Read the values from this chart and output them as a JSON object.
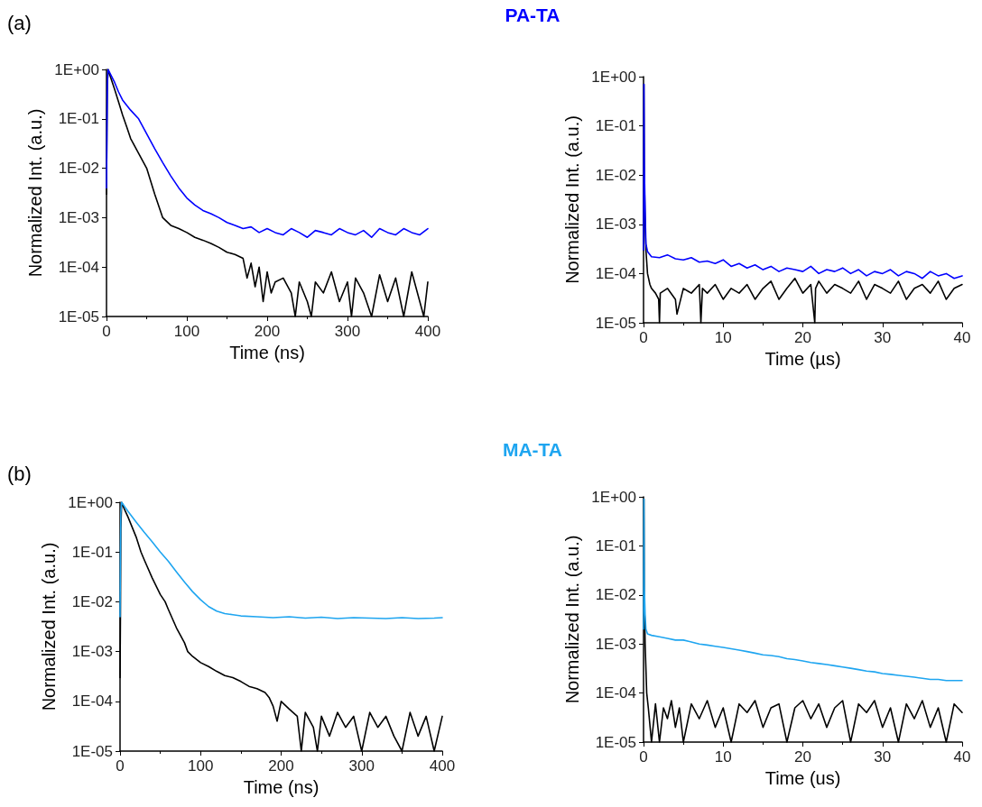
{
  "chart_data": [
    {
      "type": "line",
      "annotations": [
        "(a)",
        "PA-TA"
      ],
      "xlabel": "Time (ns)",
      "ylabel": "Normalized Int. (a.u.)",
      "log": "y",
      "marker": "none",
      "line_style": "solid",
      "grid": false,
      "xlim": [
        0,
        400
      ],
      "xticks": [
        0,
        100,
        200,
        300,
        400
      ],
      "ylim": [
        1e-05,
        1
      ],
      "yticks": [
        {
          "value": 1,
          "label": "1E+00"
        },
        {
          "value": 0.1,
          "label": "1E-01"
        },
        {
          "value": 0.01,
          "label": "1E-02"
        },
        {
          "value": 0.001,
          "label": "1E-03"
        },
        {
          "value": 0.0001,
          "label": "1E-04"
        },
        {
          "value": 1e-05,
          "label": "1E-05"
        }
      ],
      "series": [
        {
          "color": "#0000ff",
          "x": [
            0,
            0.5,
            1,
            2,
            5,
            10,
            15,
            20,
            30,
            40,
            50,
            60,
            70,
            80,
            90,
            100,
            110,
            120,
            130,
            140,
            150,
            160,
            170,
            180,
            190,
            200,
            210,
            220,
            230,
            240,
            250,
            260,
            270,
            280,
            290,
            300,
            310,
            320,
            330,
            340,
            350,
            360,
            370,
            380,
            390,
            400
          ],
          "values": [
            0.004,
            0.05,
            0.5,
            1,
            0.8,
            0.55,
            0.35,
            0.24,
            0.15,
            0.1,
            0.05,
            0.025,
            0.013,
            0.007,
            0.004,
            0.0025,
            0.0018,
            0.0014,
            0.0012,
            0.001,
            0.0008,
            0.0007,
            0.0006,
            0.00065,
            0.0005,
            0.0006,
            0.0005,
            0.00045,
            0.0006,
            0.0005,
            0.0004,
            0.00055,
            0.0005,
            0.00045,
            0.0006,
            0.0005,
            0.00045,
            0.00055,
            0.0004,
            0.0006,
            0.0005,
            0.00045,
            0.0006,
            0.0005,
            0.00045,
            0.0006
          ]
        },
        {
          "color": "#000000",
          "x": [
            0,
            0.5,
            1,
            2,
            5,
            10,
            15,
            20,
            25,
            30,
            40,
            50,
            60,
            70,
            80,
            90,
            100,
            110,
            120,
            130,
            140,
            150,
            160,
            170,
            175,
            180,
            185,
            190,
            195,
            200,
            205,
            210,
            220,
            230,
            235,
            240,
            250,
            255,
            260,
            270,
            280,
            290,
            300,
            305,
            310,
            320,
            330,
            340,
            350,
            360,
            370,
            380,
            390,
            395,
            400
          ],
          "values": [
            0.003,
            0.05,
            0.5,
            1,
            0.7,
            0.4,
            0.22,
            0.12,
            0.07,
            0.04,
            0.02,
            0.01,
            0.003,
            0.001,
            0.0007,
            0.0006,
            0.0005,
            0.0004,
            0.00035,
            0.0003,
            0.00025,
            0.0002,
            0.00018,
            0.00015,
            6e-05,
            0.00012,
            4e-05,
            0.0001,
            2e-05,
            8e-05,
            3e-05,
            5e-05,
            6e-05,
            3e-05,
            1e-05,
            5e-05,
            2e-05,
            1e-05,
            5e-05,
            3e-05,
            8e-05,
            2e-05,
            5e-05,
            1e-05,
            6e-05,
            3e-05,
            1e-05,
            7e-05,
            2e-05,
            6e-05,
            1e-05,
            8e-05,
            2e-05,
            1e-05,
            5e-05
          ]
        }
      ]
    },
    {
      "type": "line",
      "xlabel": "Time (µs)",
      "ylabel": "Normalized Int. (a.u.)",
      "log": "y",
      "marker": "none",
      "line_style": "solid",
      "grid": false,
      "xlim": [
        0,
        40
      ],
      "xticks": [
        0,
        10,
        20,
        30,
        40
      ],
      "ylim": [
        1e-05,
        1
      ],
      "yticks": [
        {
          "value": 1,
          "label": "1E+00"
        },
        {
          "value": 0.1,
          "label": "1E-01"
        },
        {
          "value": 0.01,
          "label": "1E-02"
        },
        {
          "value": 0.001,
          "label": "1E-03"
        },
        {
          "value": 0.0001,
          "label": "1E-04"
        },
        {
          "value": 1e-05,
          "label": "1E-05"
        }
      ],
      "series": [
        {
          "color": "#0000ff",
          "x": [
            0,
            0.05,
            0.1,
            0.2,
            0.3,
            0.5,
            1,
            2,
            3,
            4,
            5,
            6,
            7,
            8,
            9,
            10,
            11,
            12,
            13,
            14,
            15,
            16,
            17,
            18,
            19,
            20,
            21,
            22,
            23,
            24,
            25,
            26,
            27,
            28,
            29,
            30,
            31,
            32,
            33,
            34,
            35,
            36,
            37,
            38,
            39,
            40
          ],
          "values": [
            0.0003,
            0.7,
            0.015,
            0.002,
            0.0004,
            0.00028,
            0.00022,
            0.00021,
            0.00024,
            0.0002,
            0.00019,
            0.00021,
            0.00017,
            0.00018,
            0.00016,
            0.00019,
            0.00014,
            0.00016,
            0.00013,
            0.00015,
            0.00012,
            0.00014,
            0.00011,
            0.00013,
            0.00012,
            0.00011,
            0.00014,
            0.0001,
            0.00012,
            0.00011,
            0.00013,
            0.0001,
            0.00012,
            9e-05,
            0.00011,
            0.0001,
            0.00012,
            9e-05,
            0.00011,
            0.0001,
            8e-05,
            0.00011,
            9e-05,
            0.0001,
            8e-05,
            9e-05
          ]
        },
        {
          "color": "#000000",
          "x": [
            0,
            0.05,
            0.1,
            0.2,
            0.3,
            0.5,
            0.8,
            1,
            1.5,
            1.9,
            2,
            2.1,
            3,
            4,
            4.2,
            5,
            6,
            7,
            7.2,
            7.4,
            8,
            9,
            10,
            11,
            12,
            13,
            14,
            15,
            16,
            17,
            18,
            19,
            20,
            21,
            21.5,
            21.6,
            22,
            23,
            24,
            25,
            26,
            27,
            28,
            29,
            30,
            31,
            32,
            33,
            34,
            35,
            36,
            37,
            38,
            39,
            40
          ],
          "values": [
            0.0003,
            0.7,
            0.01,
            0.001,
            0.0003,
            0.0001,
            6e-05,
            5e-05,
            4e-05,
            3e-05,
            1e-05,
            4e-05,
            5e-05,
            3e-05,
            1.5e-05,
            5e-05,
            4e-05,
            6e-05,
            1e-05,
            5e-05,
            4e-05,
            6e-05,
            3e-05,
            5e-05,
            4e-05,
            6e-05,
            3e-05,
            5e-05,
            7e-05,
            3e-05,
            5e-05,
            8e-05,
            4e-05,
            6e-05,
            1e-05,
            5e-05,
            7e-05,
            4e-05,
            6e-05,
            5e-05,
            4e-05,
            7e-05,
            3e-05,
            6e-05,
            5e-05,
            4e-05,
            7e-05,
            3e-05,
            5e-05,
            6e-05,
            4e-05,
            7e-05,
            3e-05,
            5e-05,
            6e-05
          ]
        }
      ]
    },
    {
      "type": "line",
      "annotations": [
        "(b)",
        "MA-TA"
      ],
      "xlabel": "Time (ns)",
      "ylabel": "Normalized Int. (a.u.)",
      "log": "y",
      "marker": "none",
      "line_style": "solid",
      "grid": false,
      "xlim": [
        0,
        400
      ],
      "xticks": [
        0,
        100,
        200,
        300,
        400
      ],
      "ylim": [
        1e-05,
        1
      ],
      "yticks": [
        {
          "value": 1,
          "label": "1E+00"
        },
        {
          "value": 0.1,
          "label": "1E-01"
        },
        {
          "value": 0.01,
          "label": "1E-02"
        },
        {
          "value": 0.001,
          "label": "1E-03"
        },
        {
          "value": 0.0001,
          "label": "1E-04"
        },
        {
          "value": 1e-05,
          "label": "1E-05"
        }
      ],
      "series": [
        {
          "color": "#1ea5f0",
          "x": [
            0,
            0.5,
            1,
            2,
            5,
            10,
            20,
            30,
            40,
            50,
            60,
            70,
            80,
            90,
            100,
            110,
            120,
            130,
            140,
            150,
            170,
            190,
            210,
            230,
            250,
            270,
            290,
            310,
            330,
            350,
            370,
            390,
            400
          ],
          "values": [
            0.005,
            0.1,
            0.6,
            1,
            0.85,
            0.65,
            0.4,
            0.25,
            0.16,
            0.1,
            0.065,
            0.04,
            0.025,
            0.016,
            0.011,
            0.008,
            0.0065,
            0.0058,
            0.0055,
            0.0052,
            0.005,
            0.0048,
            0.005,
            0.0047,
            0.0049,
            0.0046,
            0.0048,
            0.0047,
            0.0046,
            0.0048,
            0.0046,
            0.0047,
            0.0048
          ]
        },
        {
          "color": "#000000",
          "x": [
            0,
            0.5,
            1,
            2,
            5,
            10,
            20,
            26,
            30,
            40,
            50,
            56,
            60,
            70,
            80,
            84,
            90,
            100,
            110,
            120,
            130,
            140,
            150,
            160,
            170,
            180,
            185,
            190,
            195,
            200,
            210,
            220,
            225,
            230,
            240,
            245,
            250,
            260,
            270,
            280,
            290,
            300,
            310,
            320,
            330,
            340,
            350,
            360,
            370,
            380,
            390,
            400
          ],
          "values": [
            0.0003,
            0.005,
            0.3,
            1,
            0.75,
            0.5,
            0.2,
            0.1,
            0.07,
            0.03,
            0.014,
            0.01,
            0.007,
            0.003,
            0.0015,
            0.001,
            0.0008,
            0.0006,
            0.0005,
            0.0004,
            0.00033,
            0.0003,
            0.00025,
            0.0002,
            0.00018,
            0.00015,
            0.00012,
            8e-05,
            4e-05,
            0.0001,
            7e-05,
            5e-05,
            1e-05,
            6e-05,
            3e-05,
            1e-05,
            5e-05,
            2e-05,
            6e-05,
            3e-05,
            5e-05,
            1e-05,
            6e-05,
            3e-05,
            5e-05,
            2e-05,
            1e-05,
            6e-05,
            2e-05,
            5e-05,
            1e-05,
            5e-05
          ]
        }
      ]
    },
    {
      "type": "line",
      "xlabel": "Time (us)",
      "ylabel": "Normalized Int. (a.u.)",
      "log": "y",
      "marker": "none",
      "line_style": "solid",
      "grid": false,
      "xlim": [
        0,
        40
      ],
      "xticks": [
        0,
        10,
        20,
        30,
        40
      ],
      "ylim": [
        1e-05,
        1
      ],
      "yticks": [
        {
          "value": 1,
          "label": "1E+00"
        },
        {
          "value": 0.1,
          "label": "1E-01"
        },
        {
          "value": 0.01,
          "label": "1E-02"
        },
        {
          "value": 0.001,
          "label": "1E-03"
        },
        {
          "value": 0.0001,
          "label": "1E-04"
        },
        {
          "value": 1e-05,
          "label": "1E-05"
        }
      ],
      "series": [
        {
          "color": "#1ea5f0",
          "x": [
            0,
            0.05,
            0.1,
            0.2,
            0.3,
            0.5,
            1,
            2,
            3,
            4,
            5,
            6,
            7,
            8,
            9,
            10,
            11,
            12,
            13,
            14,
            15,
            16,
            17,
            18,
            19,
            20,
            21,
            22,
            23,
            24,
            25,
            26,
            27,
            28,
            29,
            30,
            31,
            32,
            33,
            34,
            35,
            36,
            37,
            38,
            39,
            40
          ],
          "values": [
            0.002,
            0.9,
            0.015,
            0.004,
            0.002,
            0.0016,
            0.0015,
            0.0014,
            0.0013,
            0.0012,
            0.0012,
            0.0011,
            0.001,
            0.00095,
            0.0009,
            0.00085,
            0.0008,
            0.00075,
            0.0007,
            0.00065,
            0.0006,
            0.00058,
            0.00055,
            0.0005,
            0.00048,
            0.00045,
            0.00042,
            0.0004,
            0.00038,
            0.00036,
            0.00034,
            0.00032,
            0.0003,
            0.00028,
            0.00027,
            0.00025,
            0.00024,
            0.00023,
            0.00022,
            0.00021,
            0.0002,
            0.00019,
            0.00019,
            0.00018,
            0.00018,
            0.00018
          ]
        },
        {
          "color": "#000000",
          "x": [
            0,
            0.05,
            0.1,
            0.2,
            0.4,
            0.6,
            1,
            1.5,
            2,
            2.5,
            3,
            3.5,
            4,
            4.5,
            5,
            6,
            7,
            8,
            9,
            10,
            11,
            12,
            13,
            14,
            15,
            16,
            17,
            18,
            19,
            20,
            21,
            22,
            23,
            24,
            25,
            26,
            27,
            28,
            29,
            30,
            31,
            32,
            33,
            34,
            35,
            36,
            37,
            38,
            39,
            40
          ],
          "values": [
            0.002,
            0.9,
            0.01,
            0.001,
            0.0001,
            5e-05,
            1e-05,
            6e-05,
            1e-05,
            5e-05,
            3e-05,
            7e-05,
            2e-05,
            5e-05,
            1e-05,
            6e-05,
            3e-05,
            7e-05,
            2e-05,
            5e-05,
            1e-05,
            6e-05,
            4e-05,
            7e-05,
            2e-05,
            5e-05,
            6e-05,
            1e-05,
            5e-05,
            7e-05,
            3e-05,
            6e-05,
            2e-05,
            5e-05,
            7e-05,
            1e-05,
            6e-05,
            4e-05,
            7e-05,
            2e-05,
            5e-05,
            1e-05,
            6e-05,
            3e-05,
            7e-05,
            2e-05,
            5e-05,
            1e-05,
            6e-05,
            4e-05
          ]
        }
      ]
    }
  ]
}
